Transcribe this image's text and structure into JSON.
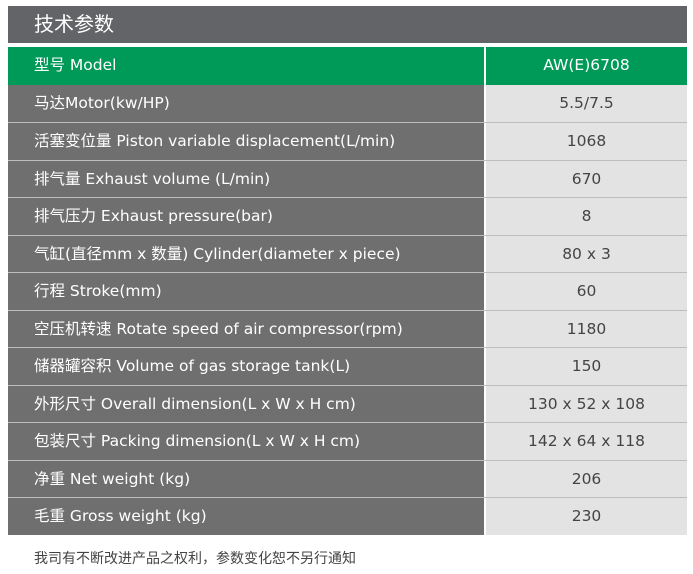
{
  "title": "技术参数",
  "header": {
    "label": "型号 Model",
    "value": "AW(E)6708"
  },
  "rows": [
    {
      "label": "马达Motor(kw/HP)",
      "value": "5.5/7.5"
    },
    {
      "label": "活塞变位量 Piston variable displacement(L/min)",
      "value": "1068"
    },
    {
      "label": "排气量 Exhaust volume (L/min)",
      "value": "670"
    },
    {
      "label": "排气压力 Exhaust pressure(bar)",
      "value": "8"
    },
    {
      "label": "气缸(直径mm x 数量) Cylinder(diameter x piece)",
      "value": "80 x 3"
    },
    {
      "label": "行程 Stroke(mm)",
      "value": "60"
    },
    {
      "label": "空压机转速 Rotate speed of air compressor(rpm)",
      "value": "1180"
    },
    {
      "label": "储器罐容积 Volume of gas storage tank(L)",
      "value": "150"
    },
    {
      "label": "外形尺寸 Overall dimension(L x W x H cm)",
      "value": "130 x 52 x 108"
    },
    {
      "label": "包装尺寸 Packing dimension(L x W x H cm)",
      "value": "142 x 64 x 118"
    },
    {
      "label": "净重 Net weight (kg)",
      "value": "206"
    },
    {
      "label": "毛重 Gross weight (kg)",
      "value": "230"
    }
  ],
  "note": "我司有不断改进产品之权利，参数变化恕不另行通知",
  "colors": {
    "header_green": "#009a58",
    "label_gray": "#6f6f6f",
    "value_gray": "#e3e3e3",
    "title_gray": "#636467"
  }
}
